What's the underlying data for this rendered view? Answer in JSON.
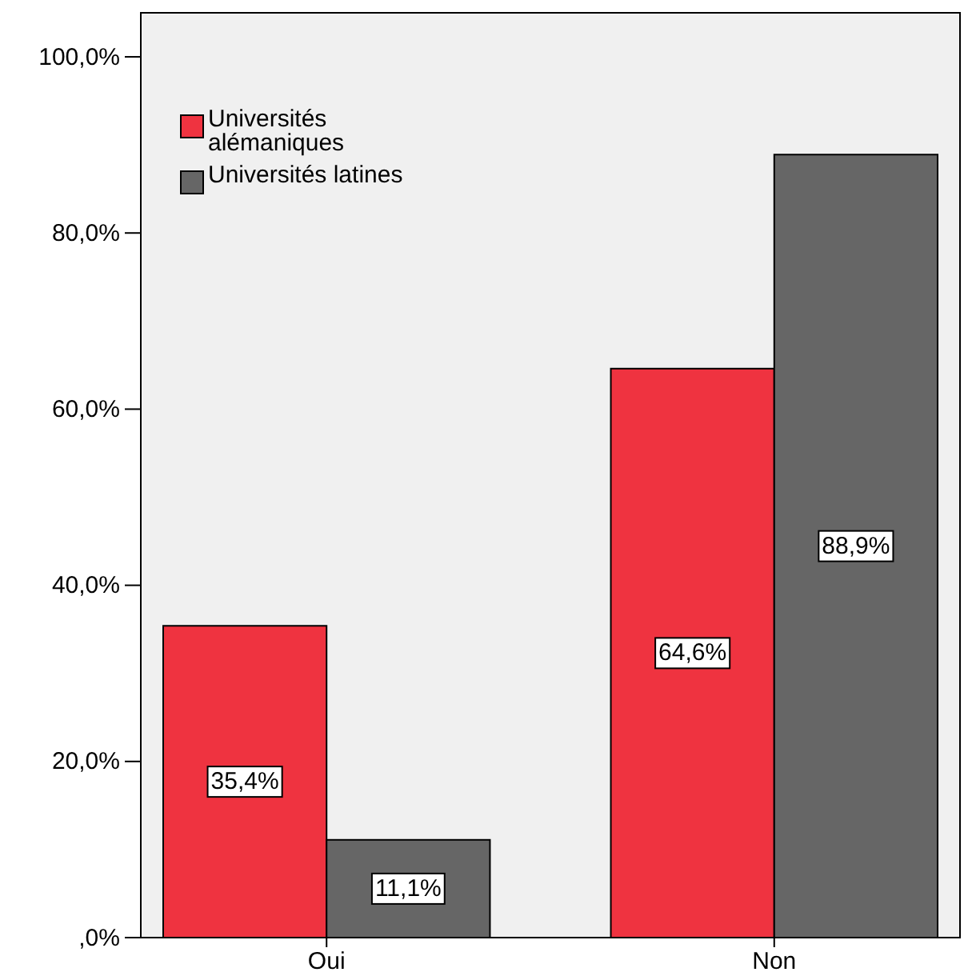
{
  "chart_data": {
    "type": "bar",
    "categories": [
      "Oui",
      "Non"
    ],
    "series": [
      {
        "name": "Universités alémaniques",
        "color": "#ef3340",
        "values": [
          35.4,
          64.6
        ],
        "value_labels": [
          "35,4%",
          "64,6%"
        ]
      },
      {
        "name": "Universités latines",
        "color": "#666666",
        "values": [
          11.1,
          88.9
        ],
        "value_labels": [
          "11,1%",
          "88,9%"
        ]
      }
    ],
    "ylim": [
      0,
      105
    ],
    "yticks": [
      {
        "value": 0,
        "label": ",0%"
      },
      {
        "value": 20,
        "label": "20,0%"
      },
      {
        "value": 40,
        "label": "40,0%"
      },
      {
        "value": 60,
        "label": "60,0%"
      },
      {
        "value": 80,
        "label": "80,0%"
      },
      {
        "value": 100,
        "label": "100,0%"
      }
    ],
    "grid": false,
    "legend": "top left"
  }
}
